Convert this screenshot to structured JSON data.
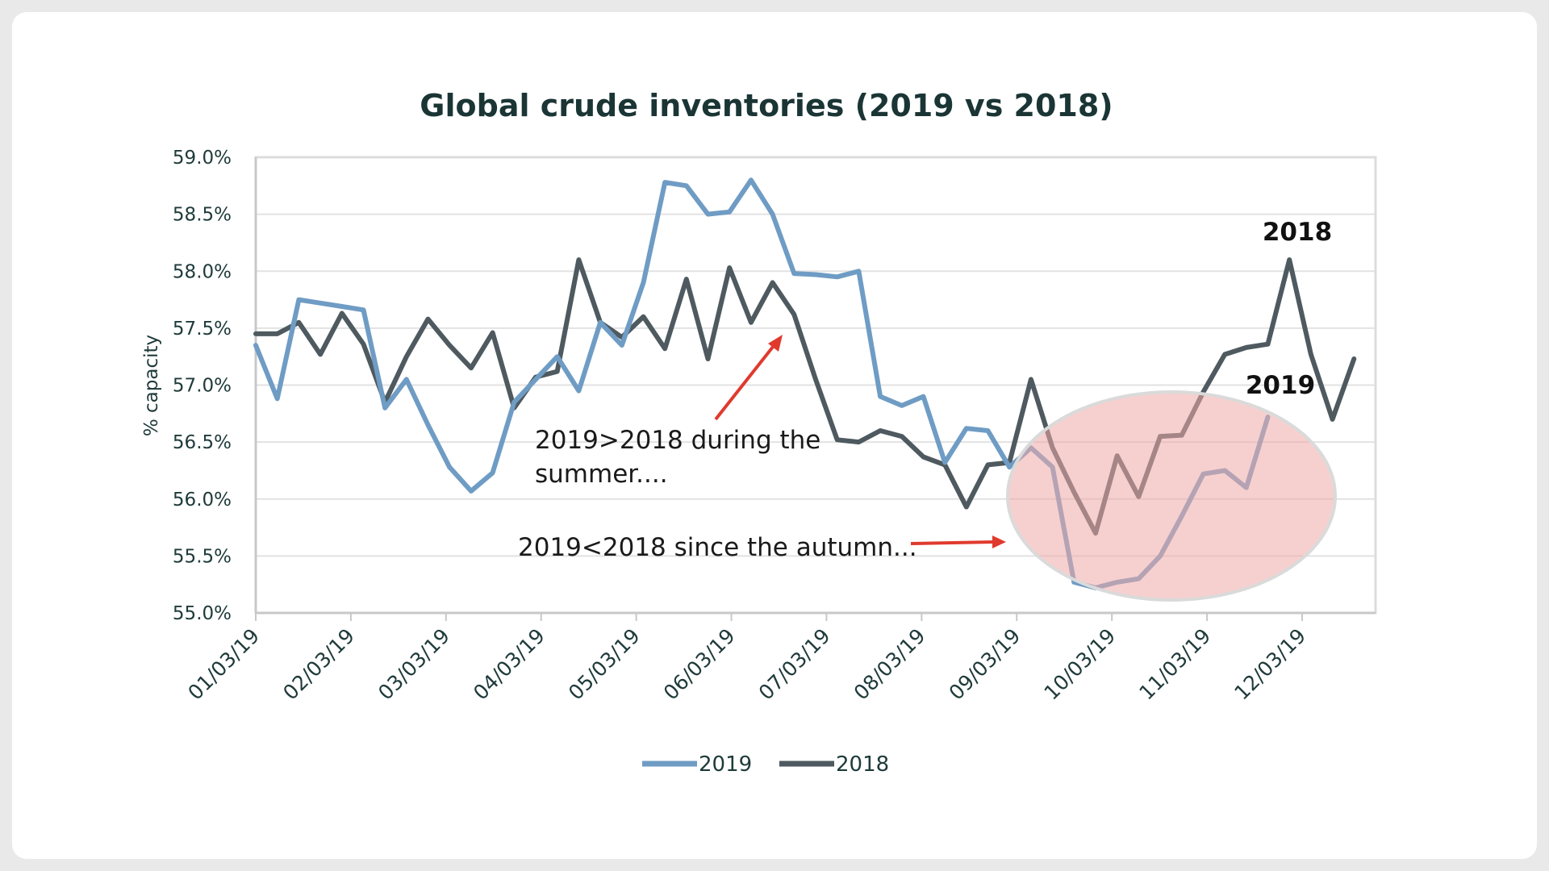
{
  "chart_data": {
    "type": "line",
    "title": "Global crude inventories (2019 vs 2018)",
    "ylabel": "% capacity",
    "xlabel": "",
    "ylim": [
      55.0,
      59.0
    ],
    "yticks": [
      "55.0%",
      "55.5%",
      "56.0%",
      "56.5%",
      "57.0%",
      "57.5%",
      "58.0%",
      "58.5%",
      "59.0%"
    ],
    "xticks": [
      "01/03/19",
      "02/03/19",
      "03/03/19",
      "04/03/19",
      "05/03/19",
      "06/03/19",
      "07/03/19",
      "08/03/19",
      "09/03/19",
      "10/03/19",
      "11/03/19",
      "12/03/19"
    ],
    "x_week_range": [
      0,
      52
    ],
    "grid": true,
    "legend_position": "bottom",
    "series": [
      {
        "name": "2019",
        "color": "#6f9cc4",
        "values": [
          57.35,
          56.88,
          57.75,
          57.72,
          57.69,
          57.66,
          56.8,
          57.05,
          56.65,
          56.28,
          56.07,
          56.23,
          56.85,
          57.05,
          57.25,
          56.95,
          57.55,
          57.35,
          57.9,
          58.78,
          58.75,
          58.5,
          58.52,
          58.8,
          58.5,
          57.98,
          57.97,
          57.95,
          58.0,
          56.9,
          56.82,
          56.9,
          56.32,
          56.62,
          56.6,
          56.28,
          56.45,
          56.28,
          55.27,
          55.22,
          55.27,
          55.3,
          55.5,
          55.85,
          56.22,
          56.25,
          56.1,
          56.72
        ]
      },
      {
        "name": "2018",
        "color": "#4e5a5f",
        "values": [
          57.45,
          57.45,
          57.55,
          57.27,
          57.63,
          57.36,
          56.85,
          57.25,
          57.58,
          57.35,
          57.15,
          57.46,
          56.8,
          57.07,
          57.12,
          58.1,
          57.55,
          57.42,
          57.6,
          57.32,
          57.93,
          57.23,
          58.03,
          57.55,
          57.9,
          57.62,
          57.05,
          56.52,
          56.5,
          56.6,
          56.55,
          56.37,
          56.3,
          55.93,
          56.3,
          56.32,
          57.05,
          56.45,
          56.06,
          55.7,
          56.38,
          56.02,
          56.55,
          56.56,
          56.94,
          57.27,
          57.33,
          57.36,
          58.1,
          57.27,
          56.7,
          57.23
        ]
      }
    ]
  },
  "annotations": {
    "summer_line1": "2019>2018 during the",
    "summer_line2": "summer....",
    "autumn": "2019<2018 since the autumn...",
    "label_2018": "2018",
    "label_2019": "2019",
    "arrow_color": "#e03a2e",
    "ellipse_color": "#eeaaa8"
  },
  "legend": {
    "item1": "2019",
    "item2": "2018"
  }
}
